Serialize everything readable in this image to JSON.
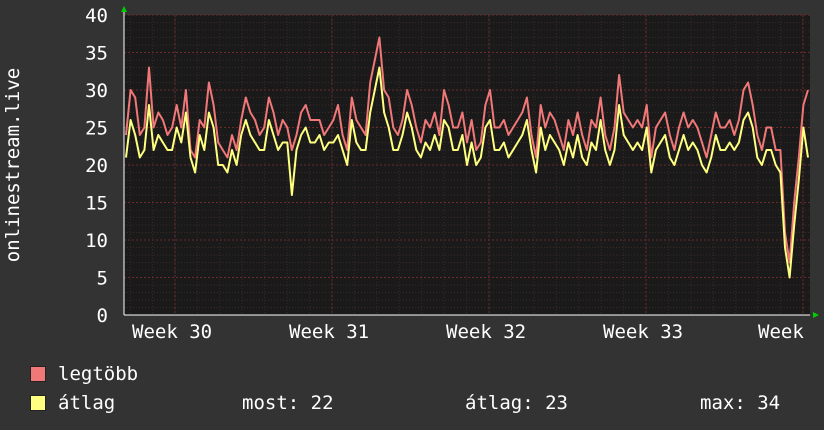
{
  "chart_data": {
    "type": "line",
    "ylabel": "onlinestream.live",
    "ylim": [
      0,
      40
    ],
    "y_ticks": [
      0,
      5,
      10,
      15,
      20,
      25,
      30,
      35,
      40
    ],
    "x_ticks": [
      "Week 30",
      "Week 31",
      "Week 32",
      "Week 33",
      "Week"
    ],
    "grid": true,
    "background": "#1a1a1a",
    "grid_color": "#4a2222",
    "series": [
      {
        "name": "legtöbb",
        "color": "#f07878",
        "values": [
          24,
          30,
          29,
          24,
          25,
          33,
          25,
          27,
          26,
          24,
          25,
          28,
          25,
          30,
          22,
          21,
          26,
          25,
          31,
          28,
          23,
          22,
          21,
          24,
          22,
          26,
          29,
          27,
          26,
          24,
          25,
          29,
          27,
          24,
          26,
          25,
          22,
          24,
          27,
          28,
          26,
          26,
          26,
          24,
          25,
          26,
          28,
          24,
          22,
          29,
          26,
          25,
          24,
          31,
          34,
          37,
          30,
          29,
          25,
          24,
          26,
          30,
          28,
          25,
          23,
          26,
          25,
          27,
          24,
          30,
          28,
          25,
          25,
          27,
          23,
          26,
          22,
          23,
          28,
          30,
          25,
          25,
          26,
          24,
          25,
          26,
          27,
          29,
          24,
          21,
          28,
          25,
          27,
          26,
          24,
          22,
          26,
          24,
          27,
          24,
          22,
          26,
          25,
          29,
          24,
          22,
          25,
          32,
          27,
          26,
          25,
          26,
          25,
          28,
          21,
          25,
          26,
          27,
          24,
          22,
          25,
          27,
          25,
          26,
          25,
          23,
          21,
          24,
          27,
          25,
          25,
          26,
          24,
          26,
          30,
          31,
          28,
          24,
          22,
          25,
          25,
          22,
          22,
          11,
          7,
          15,
          21,
          28,
          30
        ],
        "labels_unit": ""
      },
      {
        "name": "átlag",
        "color": "#ffff80",
        "values": [
          21,
          26,
          24,
          21,
          22,
          28,
          22,
          24,
          23,
          22,
          22,
          25,
          23,
          27,
          21,
          19,
          24,
          22,
          27,
          25,
          20,
          20,
          19,
          22,
          20,
          24,
          26,
          24,
          23,
          22,
          22,
          26,
          24,
          22,
          23,
          23,
          16,
          22,
          24,
          25,
          23,
          23,
          24,
          22,
          23,
          23,
          24,
          22,
          20,
          26,
          23,
          22,
          22,
          27,
          30,
          33,
          27,
          25,
          22,
          22,
          24,
          27,
          25,
          22,
          21,
          23,
          22,
          24,
          22,
          26,
          25,
          22,
          22,
          24,
          20,
          23,
          20,
          21,
          25,
          26,
          22,
          22,
          23,
          21,
          22,
          23,
          24,
          26,
          22,
          19,
          25,
          22,
          24,
          23,
          22,
          20,
          23,
          21,
          24,
          21,
          20,
          23,
          22,
          26,
          22,
          20,
          22,
          28,
          24,
          23,
          22,
          23,
          22,
          25,
          19,
          22,
          23,
          24,
          21,
          20,
          22,
          24,
          22,
          23,
          22,
          20,
          19,
          21,
          24,
          22,
          22,
          23,
          22,
          23,
          26,
          27,
          25,
          21,
          20,
          22,
          22,
          20,
          19,
          9,
          5,
          12,
          18,
          25,
          21
        ]
      }
    ]
  },
  "legend": {
    "max_label": "legtöbb",
    "avg_label": "átlag",
    "max_color": "#f07878",
    "avg_color": "#ffff80",
    "stats": {
      "now": "most: 22",
      "avg": "átlag: 23",
      "max": "max: 34"
    }
  }
}
